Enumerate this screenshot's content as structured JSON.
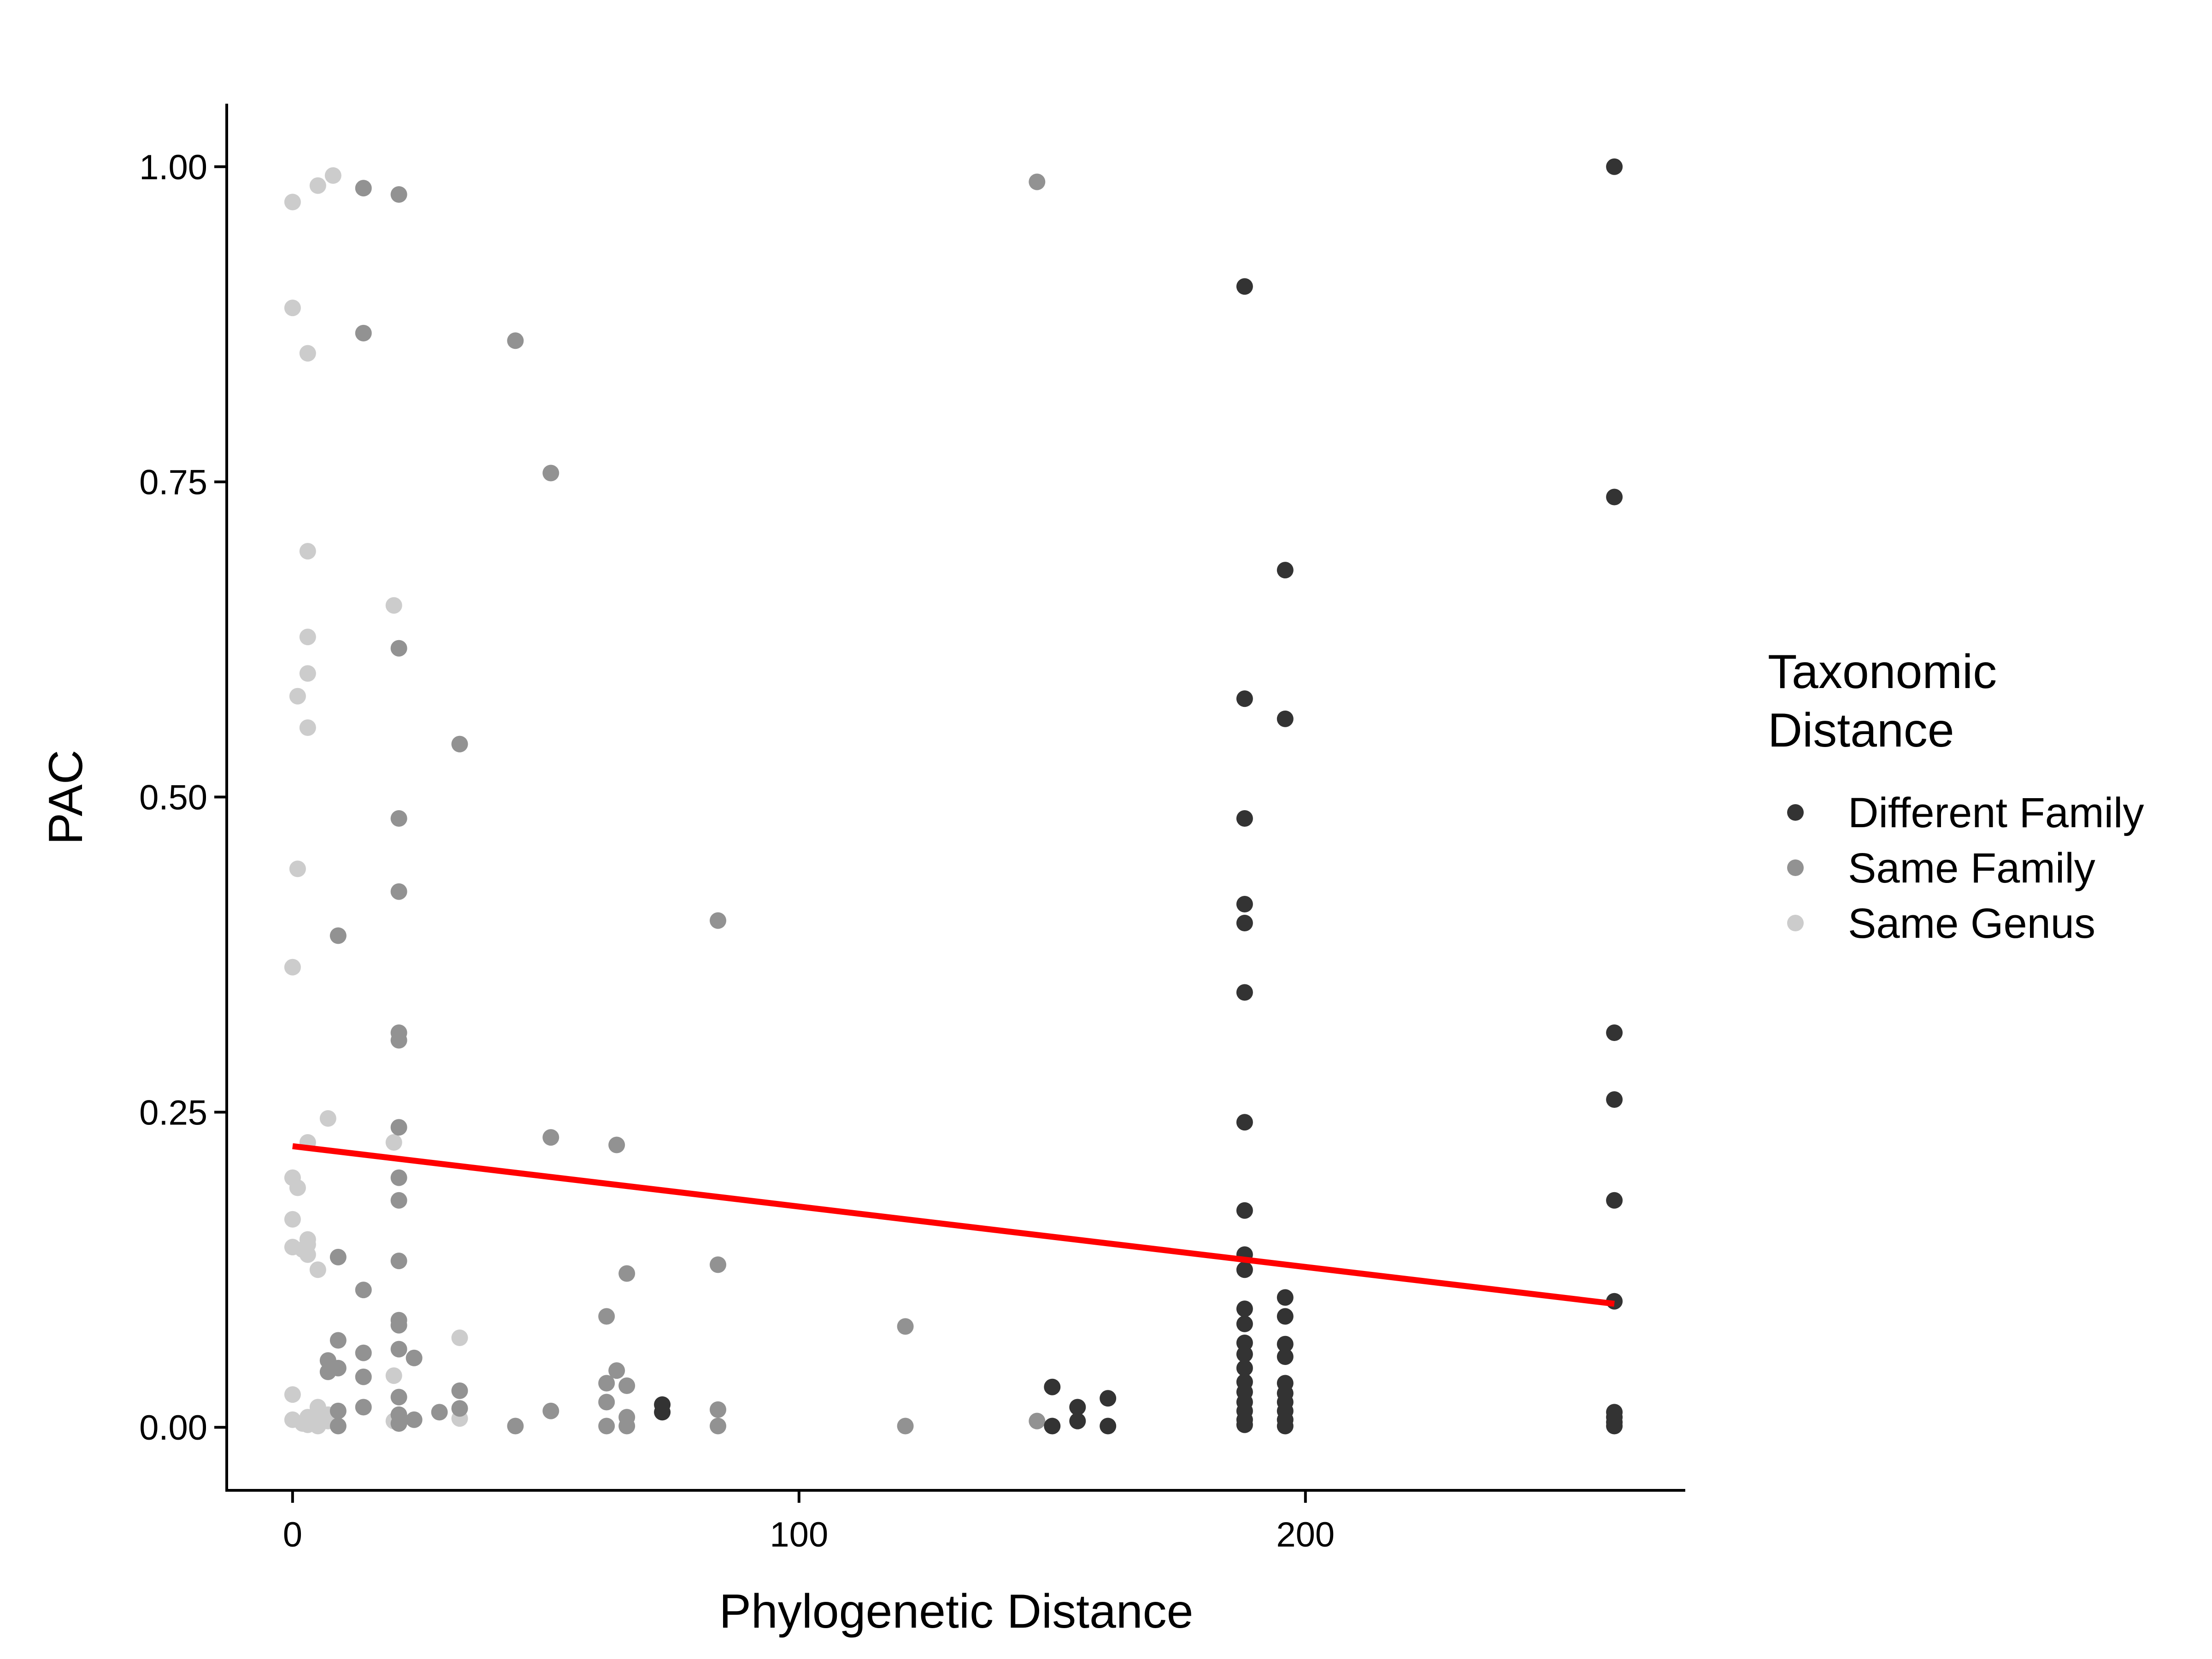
{
  "chart_data": {
    "type": "scatter",
    "title": "",
    "xlabel": "Phylogenetic Distance",
    "ylabel": "PAC",
    "xlim": [
      -13,
      275
    ],
    "ylim": [
      -0.05,
      1.05
    ],
    "xticks": [
      0,
      100,
      200
    ],
    "xtick_labels": [
      "0",
      "100",
      "200"
    ],
    "yticks": [
      0,
      0.25,
      0.5,
      0.75,
      1.0
    ],
    "ytick_labels": [
      "0.00",
      "0.25",
      "0.50",
      "0.75",
      "1.00"
    ],
    "grid": false,
    "legend": {
      "title_lines": [
        "Taxonomic",
        "Distance"
      ],
      "placement": "right"
    },
    "series": [
      {
        "name": "Different Family",
        "color": "#333333",
        "points": [
          [
            261,
            1.0
          ],
          [
            261,
            0.738
          ],
          [
            261,
            0.313
          ],
          [
            261,
            0.26
          ],
          [
            261,
            0.18
          ],
          [
            261,
            0.1
          ],
          [
            261,
            0.012
          ],
          [
            261,
            0.008
          ],
          [
            261,
            0.004
          ],
          [
            261,
            0.001
          ],
          [
            188,
            0.905
          ],
          [
            188,
            0.578
          ],
          [
            188,
            0.483
          ],
          [
            188,
            0.415
          ],
          [
            188,
            0.4
          ],
          [
            188,
            0.345
          ],
          [
            188,
            0.242
          ],
          [
            188,
            0.172
          ],
          [
            188,
            0.137
          ],
          [
            188,
            0.125
          ],
          [
            188,
            0.094
          ],
          [
            188,
            0.082
          ],
          [
            188,
            0.067
          ],
          [
            188,
            0.058
          ],
          [
            188,
            0.047
          ],
          [
            188,
            0.036
          ],
          [
            188,
            0.028
          ],
          [
            188,
            0.02
          ],
          [
            188,
            0.013
          ],
          [
            188,
            0.006
          ],
          [
            188,
            0.002
          ],
          [
            196,
            0.68
          ],
          [
            196,
            0.562
          ],
          [
            196,
            0.103
          ],
          [
            196,
            0.088
          ],
          [
            196,
            0.066
          ],
          [
            196,
            0.056
          ],
          [
            196,
            0.035
          ],
          [
            196,
            0.027
          ],
          [
            196,
            0.02
          ],
          [
            196,
            0.013
          ],
          [
            196,
            0.006
          ],
          [
            196,
            0.001
          ],
          [
            150,
            0.032
          ],
          [
            150,
            0.001
          ],
          [
            155,
            0.016
          ],
          [
            155,
            0.005
          ],
          [
            161,
            0.023
          ],
          [
            161,
            0.001
          ],
          [
            73,
            0.018
          ],
          [
            73,
            0.012
          ]
        ]
      },
      {
        "name": "Same Family",
        "color": "#929292",
        "points": [
          [
            147,
            0.988
          ],
          [
            14,
            0.983
          ],
          [
            21,
            0.978
          ],
          [
            14,
            0.868
          ],
          [
            44,
            0.862
          ],
          [
            51,
            0.757
          ],
          [
            21,
            0.618
          ],
          [
            33,
            0.542
          ],
          [
            21,
            0.483
          ],
          [
            21,
            0.425
          ],
          [
            84,
            0.402
          ],
          [
            9,
            0.39
          ],
          [
            21,
            0.313
          ],
          [
            21,
            0.307
          ],
          [
            21,
            0.238
          ],
          [
            51,
            0.23
          ],
          [
            64,
            0.224
          ],
          [
            21,
            0.198
          ],
          [
            21,
            0.18
          ],
          [
            9,
            0.135
          ],
          [
            21,
            0.132
          ],
          [
            84,
            0.129
          ],
          [
            66,
            0.122
          ],
          [
            14,
            0.109
          ],
          [
            62,
            0.088
          ],
          [
            21,
            0.085
          ],
          [
            21,
            0.081
          ],
          [
            121,
            0.08
          ],
          [
            9,
            0.069
          ],
          [
            21,
            0.062
          ],
          [
            14,
            0.059
          ],
          [
            24,
            0.055
          ],
          [
            7,
            0.053
          ],
          [
            9,
            0.047
          ],
          [
            7,
            0.044
          ],
          [
            64,
            0.045
          ],
          [
            14,
            0.04
          ],
          [
            62,
            0.035
          ],
          [
            66,
            0.033
          ],
          [
            33,
            0.029
          ],
          [
            21,
            0.024
          ],
          [
            62,
            0.02
          ],
          [
            14,
            0.016
          ],
          [
            33,
            0.015
          ],
          [
            84,
            0.014
          ],
          [
            51,
            0.013
          ],
          [
            9,
            0.013
          ],
          [
            29,
            0.012
          ],
          [
            21,
            0.01
          ],
          [
            66,
            0.008
          ],
          [
            24,
            0.006
          ],
          [
            147,
            0.005
          ],
          [
            21,
            0.003
          ],
          [
            44,
            0.001
          ],
          [
            62,
            0.001
          ],
          [
            66,
            0.001
          ],
          [
            84,
            0.001
          ],
          [
            121,
            0.001
          ],
          [
            9,
            0.001
          ]
        ]
      },
      {
        "name": "Same Genus",
        "color": "#cccccc",
        "points": [
          [
            8,
            0.993
          ],
          [
            5,
            0.985
          ],
          [
            0,
            0.972
          ],
          [
            0,
            0.888
          ],
          [
            3,
            0.852
          ],
          [
            3,
            0.695
          ],
          [
            20,
            0.652
          ],
          [
            3,
            0.627
          ],
          [
            3,
            0.598
          ],
          [
            1,
            0.58
          ],
          [
            3,
            0.555
          ],
          [
            1,
            0.443
          ],
          [
            0,
            0.365
          ],
          [
            7,
            0.245
          ],
          [
            3,
            0.226
          ],
          [
            20,
            0.226
          ],
          [
            0,
            0.198
          ],
          [
            1,
            0.19
          ],
          [
            0,
            0.165
          ],
          [
            3,
            0.149
          ],
          [
            3,
            0.145
          ],
          [
            0,
            0.143
          ],
          [
            2,
            0.141
          ],
          [
            3,
            0.137
          ],
          [
            5,
            0.125
          ],
          [
            33,
            0.071
          ],
          [
            20,
            0.041
          ],
          [
            0,
            0.026
          ],
          [
            5,
            0.016
          ],
          [
            7,
            0.01
          ],
          [
            3,
            0.008
          ],
          [
            0,
            0.006
          ],
          [
            33,
            0.007
          ],
          [
            20,
            0.005
          ],
          [
            4,
            0.004
          ],
          [
            2,
            0.003
          ],
          [
            7,
            0.005
          ],
          [
            5,
            0.001
          ],
          [
            3,
            0.002
          ],
          [
            4,
            0.006
          ]
        ]
      }
    ],
    "trend_line": {
      "color": "#ff0000",
      "x": [
        0,
        261
      ],
      "y": [
        0.223,
        0.098
      ]
    }
  }
}
